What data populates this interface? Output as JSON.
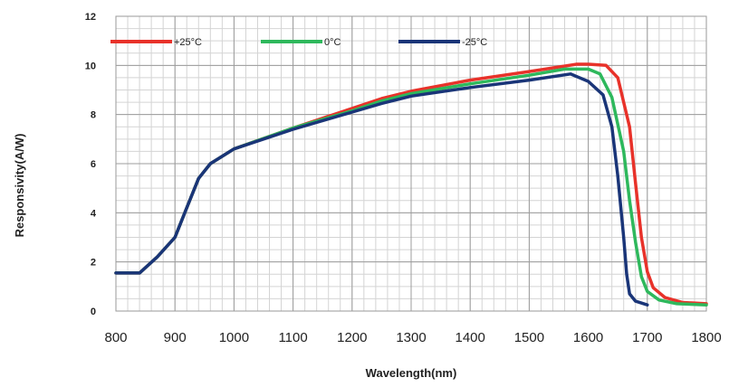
{
  "chart_data": {
    "type": "line",
    "title": "",
    "xlabel": "Wavelength(nm)",
    "ylabel": "Responsivity(A/W)",
    "xlim": [
      800,
      1800
    ],
    "ylim": [
      0,
      12
    ],
    "xticks": [
      "800",
      "900",
      "1000",
      "1100",
      "1200",
      "1300",
      "1400",
      "1500",
      "1600",
      "1700",
      "1800"
    ],
    "yticks": [
      "0",
      "2",
      "4",
      "6",
      "8",
      "10",
      "12"
    ],
    "grid": true,
    "legend_position": "top",
    "series": [
      {
        "name": "+25°C",
        "color": "#e8322a",
        "points": [
          [
            800,
            1.55
          ],
          [
            840,
            1.55
          ],
          [
            870,
            2.2
          ],
          [
            900,
            3.0
          ],
          [
            920,
            4.2
          ],
          [
            940,
            5.4
          ],
          [
            960,
            6.0
          ],
          [
            1000,
            6.6
          ],
          [
            1100,
            7.45
          ],
          [
            1200,
            8.25
          ],
          [
            1250,
            8.65
          ],
          [
            1300,
            8.95
          ],
          [
            1400,
            9.4
          ],
          [
            1500,
            9.75
          ],
          [
            1580,
            10.05
          ],
          [
            1600,
            10.05
          ],
          [
            1630,
            10.0
          ],
          [
            1650,
            9.5
          ],
          [
            1670,
            7.5
          ],
          [
            1680,
            5.2
          ],
          [
            1690,
            3.0
          ],
          [
            1700,
            1.6
          ],
          [
            1710,
            0.95
          ],
          [
            1730,
            0.55
          ],
          [
            1760,
            0.35
          ],
          [
            1800,
            0.3
          ]
        ]
      },
      {
        "name": "0°C",
        "color": "#2eb85c",
        "points": [
          [
            800,
            1.55
          ],
          [
            840,
            1.55
          ],
          [
            870,
            2.2
          ],
          [
            900,
            3.0
          ],
          [
            920,
            4.2
          ],
          [
            940,
            5.4
          ],
          [
            960,
            6.0
          ],
          [
            1000,
            6.6
          ],
          [
            1100,
            7.45
          ],
          [
            1200,
            8.15
          ],
          [
            1250,
            8.55
          ],
          [
            1300,
            8.85
          ],
          [
            1400,
            9.25
          ],
          [
            1500,
            9.6
          ],
          [
            1560,
            9.85
          ],
          [
            1600,
            9.85
          ],
          [
            1620,
            9.65
          ],
          [
            1640,
            8.7
          ],
          [
            1660,
            6.5
          ],
          [
            1670,
            4.5
          ],
          [
            1680,
            2.8
          ],
          [
            1690,
            1.4
          ],
          [
            1700,
            0.8
          ],
          [
            1720,
            0.45
          ],
          [
            1750,
            0.3
          ],
          [
            1800,
            0.25
          ]
        ]
      },
      {
        "name": "-25°C",
        "color": "#1a3578",
        "points": [
          [
            800,
            1.55
          ],
          [
            840,
            1.55
          ],
          [
            870,
            2.2
          ],
          [
            900,
            3.0
          ],
          [
            920,
            4.2
          ],
          [
            940,
            5.4
          ],
          [
            960,
            6.0
          ],
          [
            1000,
            6.6
          ],
          [
            1100,
            7.4
          ],
          [
            1200,
            8.1
          ],
          [
            1250,
            8.45
          ],
          [
            1300,
            8.75
          ],
          [
            1400,
            9.1
          ],
          [
            1500,
            9.4
          ],
          [
            1570,
            9.65
          ],
          [
            1600,
            9.35
          ],
          [
            1625,
            8.8
          ],
          [
            1640,
            7.5
          ],
          [
            1650,
            5.5
          ],
          [
            1660,
            3.0
          ],
          [
            1665,
            1.5
          ],
          [
            1670,
            0.7
          ],
          [
            1680,
            0.4
          ],
          [
            1700,
            0.25
          ]
        ]
      }
    ]
  }
}
